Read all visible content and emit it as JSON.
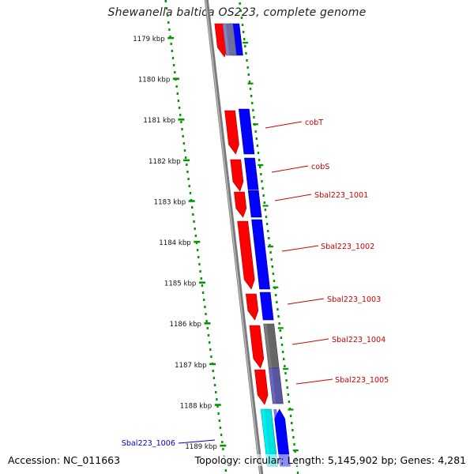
{
  "title": "Shewanella baltica OS223, complete genome",
  "footer": {
    "accession": "Accession: NC_011663",
    "topology": "Topology: circular; Length: 5,145,902 bp; Genes: 4,281"
  },
  "colors": {
    "forward_strand": "#ff0000",
    "reverse_strand": "#0000ff",
    "tick": "#009900",
    "label_forward": "#cc0000",
    "label_other": "#0000cc",
    "backbone": "#888888",
    "gray_feature": "#666666",
    "purple_feature": "#5a55a0",
    "cyan_feature": "#00e0e0"
  },
  "ticks": [
    {
      "label": "1179 kbp"
    },
    {
      "label": "1180 kbp"
    },
    {
      "label": "1181 kbp"
    },
    {
      "label": "1182 kbp"
    },
    {
      "label": "1183 kbp"
    },
    {
      "label": "1184 kbp"
    },
    {
      "label": "1185 kbp"
    },
    {
      "label": "1186 kbp"
    },
    {
      "label": "1187 kbp"
    },
    {
      "label": "1188 kbp"
    },
    {
      "label": "1189 kbp"
    }
  ],
  "gene_labels": [
    {
      "name": "cobT",
      "color": "#cc0000"
    },
    {
      "name": "cobS",
      "color": "#cc0000"
    },
    {
      "name": "Sbal223_1001",
      "color": "#cc0000"
    },
    {
      "name": "Sbal223_1002",
      "color": "#cc0000"
    },
    {
      "name": "Sbal223_1003",
      "color": "#cc0000"
    },
    {
      "name": "Sbal223_1004",
      "color": "#cc0000"
    },
    {
      "name": "Sbal223_1005",
      "color": "#cc0000"
    },
    {
      "name": "Sbal223_1006",
      "color": "#0000cc"
    }
  ]
}
